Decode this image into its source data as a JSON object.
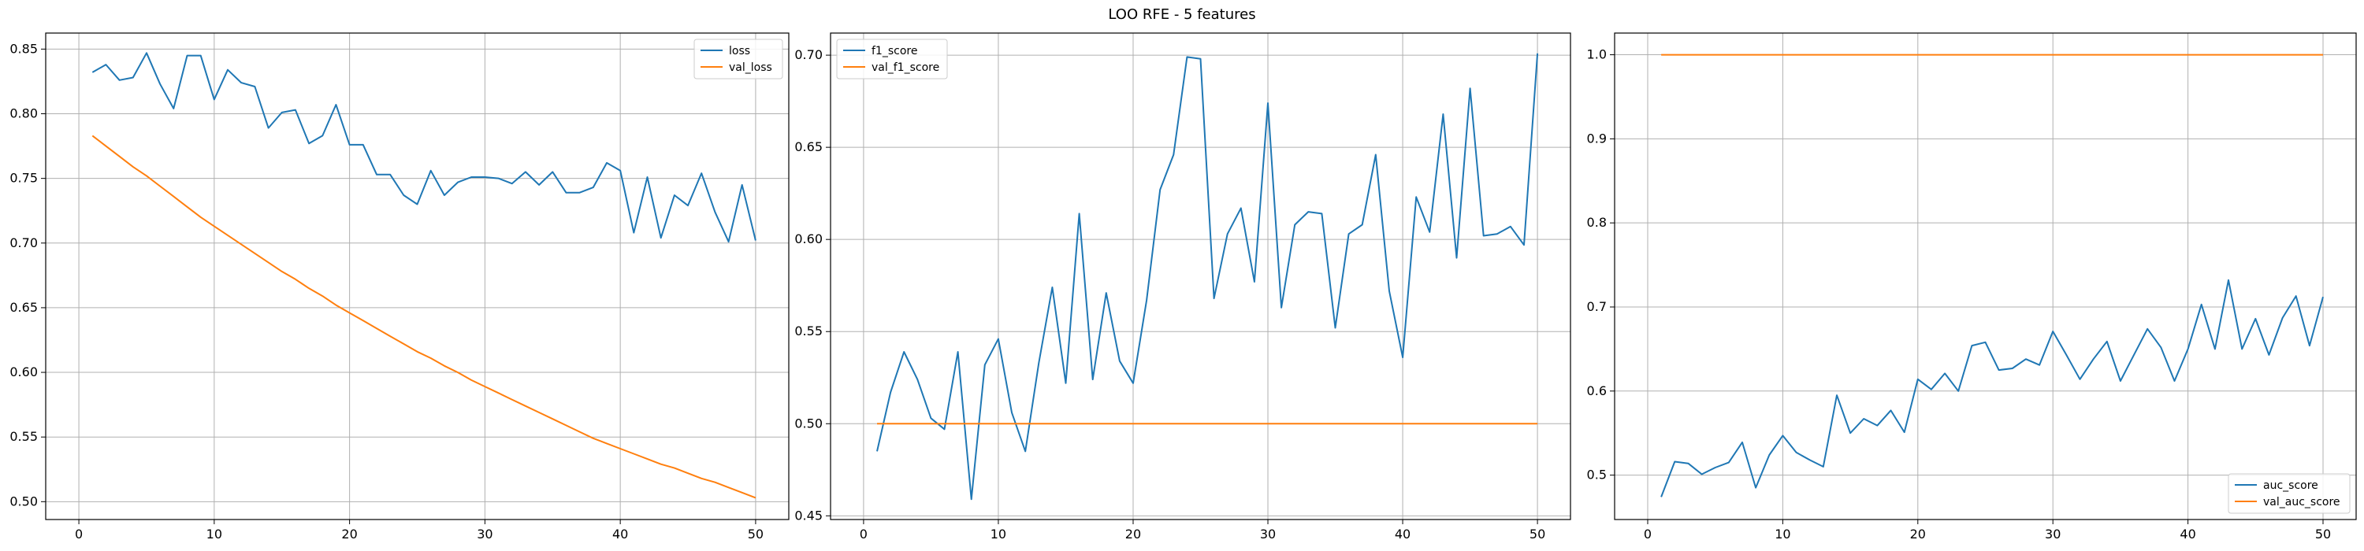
{
  "figure": {
    "title": "LOO RFE - 5 features"
  },
  "colors": {
    "series_0": "#1f77b4",
    "series_1": "#ff7f0e",
    "grid": "#b0b0b0"
  },
  "chart_data": [
    {
      "type": "line",
      "title": "",
      "xlabel": "",
      "ylabel": "",
      "xlim": [
        -2.45,
        52.45
      ],
      "ylim": [
        0.4862,
        0.8624
      ],
      "xticks": [
        0,
        10,
        20,
        30,
        40,
        50
      ],
      "yticks": [
        0.5,
        0.55,
        0.6,
        0.65,
        0.7,
        0.75,
        0.8,
        0.85
      ],
      "grid": true,
      "legend": "upper right",
      "x": [
        1,
        2,
        3,
        4,
        5,
        6,
        7,
        8,
        9,
        10,
        11,
        12,
        13,
        14,
        15,
        16,
        17,
        18,
        19,
        20,
        21,
        22,
        23,
        24,
        25,
        26,
        27,
        28,
        29,
        30,
        31,
        32,
        33,
        34,
        35,
        36,
        37,
        38,
        39,
        40,
        41,
        42,
        43,
        44,
        45,
        46,
        47,
        48,
        49,
        50
      ],
      "series": [
        {
          "name": "loss",
          "values": [
            0.832,
            0.838,
            0.826,
            0.828,
            0.847,
            0.823,
            0.804,
            0.845,
            0.845,
            0.811,
            0.834,
            0.824,
            0.821,
            0.789,
            0.801,
            0.803,
            0.777,
            0.783,
            0.807,
            0.776,
            0.776,
            0.753,
            0.753,
            0.737,
            0.73,
            0.756,
            0.737,
            0.747,
            0.751,
            0.751,
            0.75,
            0.746,
            0.755,
            0.745,
            0.755,
            0.739,
            0.739,
            0.743,
            0.762,
            0.756,
            0.708,
            0.751,
            0.704,
            0.737,
            0.729,
            0.754,
            0.724,
            0.701,
            0.745,
            0.702
          ]
        },
        {
          "name": "val_loss",
          "values": [
            0.783,
            0.775,
            0.767,
            0.759,
            0.752,
            0.744,
            0.736,
            0.728,
            0.72,
            0.713,
            0.706,
            0.699,
            0.692,
            0.685,
            0.678,
            0.672,
            0.665,
            0.659,
            0.652,
            0.646,
            0.64,
            0.634,
            0.628,
            0.622,
            0.616,
            0.611,
            0.605,
            0.6,
            0.594,
            0.589,
            0.584,
            0.579,
            0.574,
            0.569,
            0.564,
            0.559,
            0.554,
            0.549,
            0.545,
            0.541,
            0.537,
            0.533,
            0.529,
            0.526,
            0.522,
            0.518,
            0.515,
            0.511,
            0.507,
            0.503
          ]
        }
      ]
    },
    {
      "type": "line",
      "title": "",
      "xlabel": "",
      "ylabel": "",
      "xlim": [
        -2.45,
        52.45
      ],
      "ylim": [
        0.448,
        0.712
      ],
      "xticks": [
        0,
        10,
        20,
        30,
        40,
        50
      ],
      "yticks": [
        0.45,
        0.5,
        0.55,
        0.6,
        0.65,
        0.7
      ],
      "grid": true,
      "legend": "upper left",
      "x": [
        1,
        2,
        3,
        4,
        5,
        6,
        7,
        8,
        9,
        10,
        11,
        12,
        13,
        14,
        15,
        16,
        17,
        18,
        19,
        20,
        21,
        22,
        23,
        24,
        25,
        26,
        27,
        28,
        29,
        30,
        31,
        32,
        33,
        34,
        35,
        36,
        37,
        38,
        39,
        40,
        41,
        42,
        43,
        44,
        45,
        46,
        47,
        48,
        49,
        50
      ],
      "series": [
        {
          "name": "f1_score",
          "values": [
            0.485,
            0.517,
            0.539,
            0.524,
            0.503,
            0.497,
            0.539,
            0.459,
            0.532,
            0.546,
            0.506,
            0.485,
            0.533,
            0.574,
            0.522,
            0.614,
            0.524,
            0.571,
            0.534,
            0.522,
            0.567,
            0.627,
            0.646,
            0.699,
            0.698,
            0.568,
            0.603,
            0.617,
            0.577,
            0.674,
            0.563,
            0.608,
            0.615,
            0.614,
            0.552,
            0.603,
            0.608,
            0.646,
            0.572,
            0.536,
            0.623,
            0.604,
            0.668,
            0.59,
            0.682,
            0.602,
            0.603,
            0.607,
            0.597,
            0.701
          ]
        },
        {
          "name": "val_f1_score",
          "values": [
            0.5,
            0.5,
            0.5,
            0.5,
            0.5,
            0.5,
            0.5,
            0.5,
            0.5,
            0.5,
            0.5,
            0.5,
            0.5,
            0.5,
            0.5,
            0.5,
            0.5,
            0.5,
            0.5,
            0.5,
            0.5,
            0.5,
            0.5,
            0.5,
            0.5,
            0.5,
            0.5,
            0.5,
            0.5,
            0.5,
            0.5,
            0.5,
            0.5,
            0.5,
            0.5,
            0.5,
            0.5,
            0.5,
            0.5,
            0.5,
            0.5,
            0.5,
            0.5,
            0.5,
            0.5,
            0.5,
            0.5,
            0.5,
            0.5,
            0.5
          ]
        }
      ]
    },
    {
      "type": "line",
      "title": "",
      "xlabel": "",
      "ylabel": "",
      "xlim": [
        -2.45,
        52.45
      ],
      "ylim": [
        0.4472,
        1.0258
      ],
      "xticks": [
        0,
        10,
        20,
        30,
        40,
        50
      ],
      "yticks": [
        0.5,
        0.6,
        0.7,
        0.8,
        0.9,
        1.0
      ],
      "grid": true,
      "legend": "lower right",
      "x": [
        1,
        2,
        3,
        4,
        5,
        6,
        7,
        8,
        9,
        10,
        11,
        12,
        13,
        14,
        15,
        16,
        17,
        18,
        19,
        20,
        21,
        22,
        23,
        24,
        25,
        26,
        27,
        28,
        29,
        30,
        31,
        32,
        33,
        34,
        35,
        36,
        37,
        38,
        39,
        40,
        41,
        42,
        43,
        44,
        45,
        46,
        47,
        48,
        49,
        50
      ],
      "series": [
        {
          "name": "auc_score",
          "values": [
            0.474,
            0.516,
            0.514,
            0.501,
            0.509,
            0.515,
            0.539,
            0.485,
            0.524,
            0.547,
            0.527,
            0.518,
            0.51,
            0.595,
            0.55,
            0.567,
            0.559,
            0.577,
            0.551,
            0.614,
            0.602,
            0.621,
            0.6,
            0.654,
            0.658,
            0.625,
            0.627,
            0.638,
            0.631,
            0.671,
            0.643,
            0.614,
            0.638,
            0.659,
            0.612,
            0.643,
            0.674,
            0.652,
            0.612,
            0.65,
            0.703,
            0.65,
            0.732,
            0.65,
            0.686,
            0.643,
            0.687,
            0.713,
            0.654,
            0.712
          ]
        },
        {
          "name": "val_auc_score",
          "values": [
            1.0,
            1.0,
            1.0,
            1.0,
            1.0,
            1.0,
            1.0,
            1.0,
            1.0,
            1.0,
            1.0,
            1.0,
            1.0,
            1.0,
            1.0,
            1.0,
            1.0,
            1.0,
            1.0,
            1.0,
            1.0,
            1.0,
            1.0,
            1.0,
            1.0,
            1.0,
            1.0,
            1.0,
            1.0,
            1.0,
            1.0,
            1.0,
            1.0,
            1.0,
            1.0,
            1.0,
            1.0,
            1.0,
            1.0,
            1.0,
            1.0,
            1.0,
            1.0,
            1.0,
            1.0,
            1.0,
            1.0,
            1.0,
            1.0,
            1.0
          ]
        }
      ]
    }
  ]
}
